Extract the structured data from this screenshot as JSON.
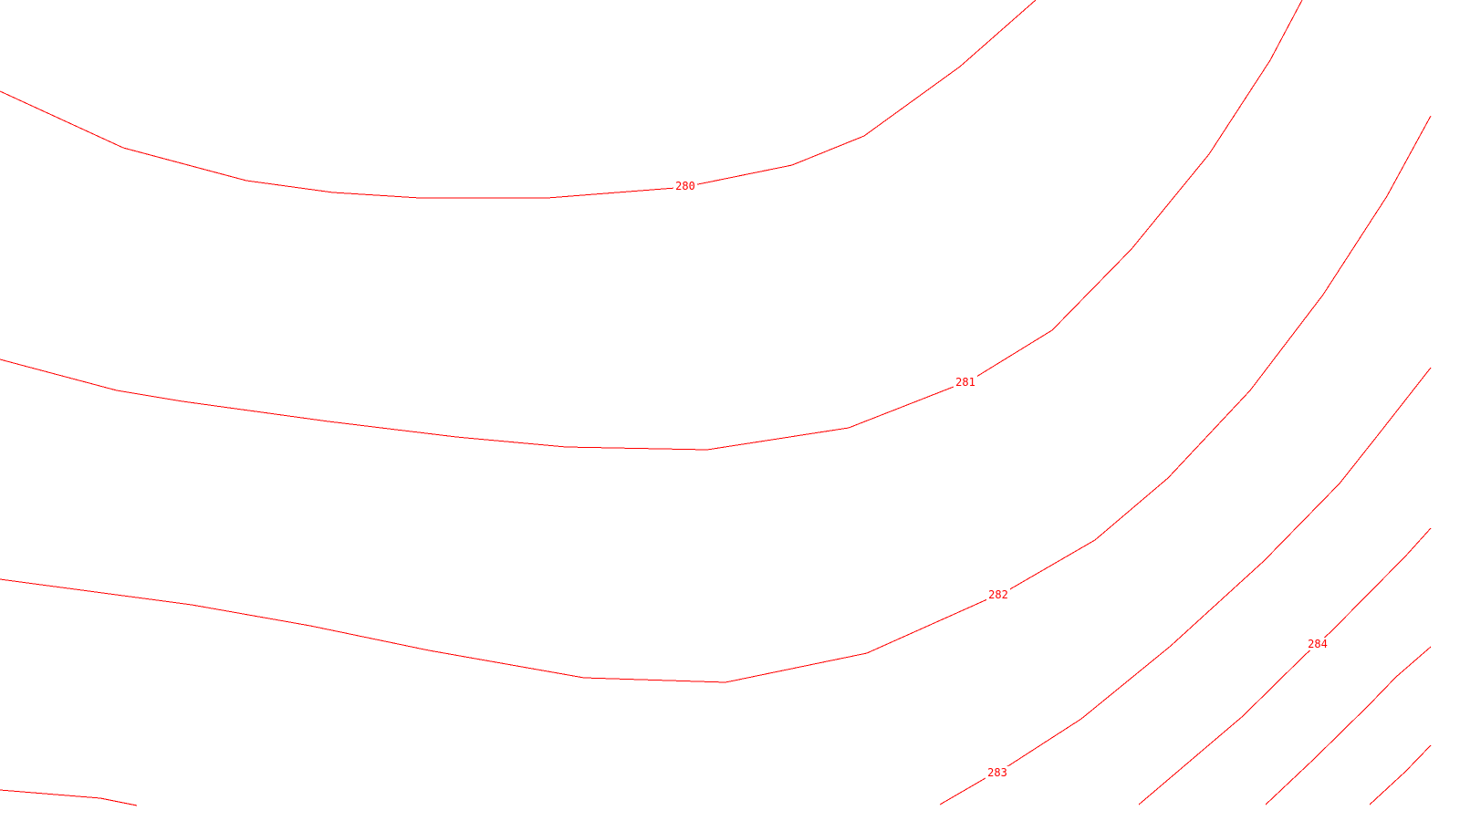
{
  "map": {
    "background_color": "#ffffff",
    "contour_color": "#ff0000",
    "contours": [
      {
        "id": "c280",
        "label": "280"
      },
      {
        "id": "c281",
        "label": "281"
      },
      {
        "id": "c282",
        "label": "282"
      },
      {
        "id": "c283",
        "label": "283"
      },
      {
        "id": "c284",
        "label": "284"
      },
      {
        "id": "c285",
        "label": ""
      },
      {
        "id": "c286",
        "label": ""
      },
      {
        "id": "c287",
        "label": ""
      }
    ]
  }
}
